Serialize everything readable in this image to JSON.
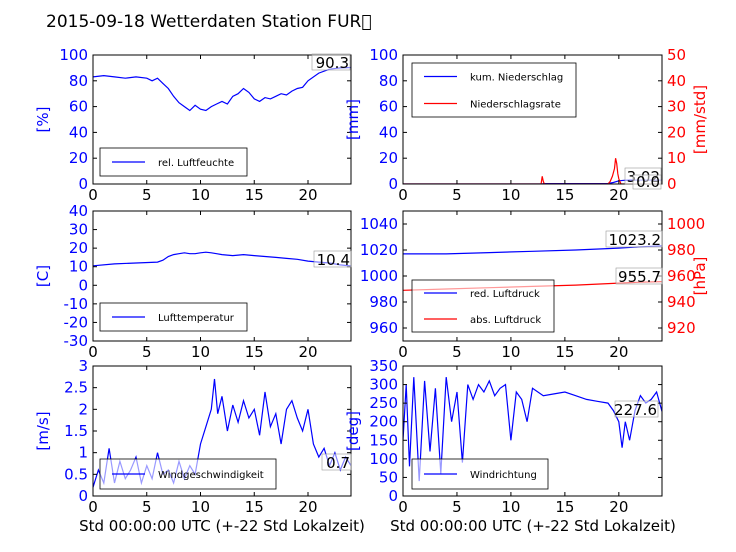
{
  "figure": {
    "title": "2015-09-18 Wetterdaten Station FUR\u0000",
    "xlabel": "Std 00:00:00 UTC (+-22 Std Lokalzeit)"
  },
  "colors": {
    "primary": "#0000ff",
    "secondary": "#ff0000",
    "light": "#8080ff",
    "axis": "#000000"
  },
  "chart_data": [
    {
      "type": "line",
      "ylabel": "[%]",
      "xlim": [
        0,
        24
      ],
      "ylim": [
        0,
        100
      ],
      "xticks": [
        0,
        5,
        10,
        15,
        20
      ],
      "yticks": [
        0,
        20,
        40,
        60,
        80,
        100
      ],
      "legend": {
        "placement": "lower-left",
        "entries": [
          "rel. Luftfeuchte"
        ]
      },
      "annotations": [
        "90.3"
      ],
      "series": [
        {
          "name": "rel. Luftfeuchte",
          "x": [
            0,
            1,
            2,
            3,
            4,
            5,
            5.5,
            6,
            6.5,
            7,
            7.5,
            8,
            8.5,
            9,
            9.5,
            10,
            10.5,
            11,
            11.5,
            12,
            12.5,
            13,
            13.5,
            14,
            14.5,
            15,
            15.5,
            16,
            16.5,
            17,
            17.5,
            18,
            18.5,
            19,
            19.5,
            20,
            21,
            22,
            23,
            24
          ],
          "y": [
            83,
            84,
            83,
            82,
            83,
            82,
            80,
            82,
            78,
            74,
            68,
            63,
            60,
            57,
            61,
            58,
            57,
            60,
            62,
            64,
            62,
            68,
            70,
            74,
            71,
            66,
            64,
            67,
            66,
            68,
            70,
            69,
            72,
            74,
            75,
            80,
            86,
            89,
            90,
            90.3
          ]
        }
      ]
    },
    {
      "type": "line",
      "ylabel": "[mm]",
      "ylabel2": "[mm/std]",
      "xlim": [
        0,
        24
      ],
      "ylim": [
        0,
        100
      ],
      "ylim2": [
        0,
        50
      ],
      "xticks": [
        0,
        5,
        10,
        15,
        20
      ],
      "yticks": [
        0,
        20,
        40,
        60,
        80,
        100
      ],
      "yticks2": [
        0,
        10,
        20,
        30,
        40,
        50
      ],
      "legend": {
        "placement": "upper-left",
        "entries": [
          "kum. Niederschlag",
          "Niederschlagsrate"
        ]
      },
      "annotations": [
        "3.02",
        "0.0"
      ],
      "series": [
        {
          "name": "kum. Niederschlag",
          "axis": "left",
          "x": [
            0,
            12.9,
            13,
            19,
            19.5,
            20,
            20.5,
            21,
            24
          ],
          "y": [
            0,
            0,
            0.3,
            0.4,
            1.2,
            2.5,
            2.9,
            3.02,
            3.02
          ]
        },
        {
          "name": "Niederschlagsrate",
          "axis": "right",
          "x": [
            0,
            12.8,
            12.9,
            13.0,
            13.1,
            19.0,
            19.2,
            19.4,
            19.6,
            19.7,
            19.8,
            19.9,
            20.0,
            20.1,
            20.2,
            20.4,
            24
          ],
          "y": [
            0,
            0,
            3,
            1,
            0,
            0,
            1,
            3,
            6,
            10,
            8,
            4,
            2,
            1,
            0,
            0,
            0
          ]
        }
      ]
    },
    {
      "type": "line",
      "ylabel": "[C]",
      "xlim": [
        0,
        24
      ],
      "ylim": [
        -30,
        40
      ],
      "xticks": [
        0,
        5,
        10,
        15,
        20
      ],
      "yticks": [
        -30,
        -20,
        -10,
        0,
        10,
        20,
        30,
        40
      ],
      "legend": {
        "placement": "lower-left",
        "entries": [
          "Lufttemperatur"
        ]
      },
      "annotations": [
        "10.4"
      ],
      "series": [
        {
          "name": "Lufttemperatur",
          "x": [
            0,
            2,
            4,
            6,
            6.5,
            7,
            7.5,
            8,
            8.5,
            9,
            9.5,
            10,
            10.5,
            11,
            11.5,
            12,
            13,
            14,
            15,
            16,
            17,
            18,
            19,
            20,
            21,
            22,
            23,
            24
          ],
          "y": [
            10.5,
            11.5,
            12,
            12.5,
            13.5,
            15.5,
            16.5,
            17,
            17.5,
            17,
            17,
            17.5,
            17.8,
            17.5,
            17,
            16.5,
            16,
            16.5,
            16,
            15.5,
            15,
            14.5,
            14,
            13,
            12.5,
            12,
            11,
            10.4
          ]
        }
      ]
    },
    {
      "type": "line",
      "ylabel2": "[hPa]",
      "xlim": [
        0,
        24
      ],
      "ylim": [
        950,
        1050
      ],
      "ylim2": [
        910,
        1010
      ],
      "xticks": [
        0,
        5,
        10,
        15,
        20
      ],
      "yticks": [
        960,
        980,
        1000,
        1020,
        1040
      ],
      "yticks2": [
        920,
        940,
        960,
        980,
        1000
      ],
      "legend": {
        "placement": "lower-left",
        "entries": [
          "red. Luftdruck",
          "abs. Luftdruck"
        ]
      },
      "annotations": [
        "1023.2",
        "955.7"
      ],
      "series": [
        {
          "name": "red. Luftdruck",
          "axis": "left",
          "x": [
            0,
            4,
            8,
            12,
            16,
            20,
            22,
            24
          ],
          "y": [
            1017,
            1017,
            1018,
            1019,
            1020,
            1021.5,
            1022.5,
            1023.2
          ]
        },
        {
          "name": "abs. Luftdruck",
          "axis": "right",
          "x": [
            0,
            4,
            8,
            12,
            16,
            20,
            22,
            24
          ],
          "y": [
            949,
            950,
            951,
            952,
            953,
            954.5,
            955.2,
            955.7
          ]
        }
      ]
    },
    {
      "type": "line",
      "ylabel": "[m/s]",
      "xlim": [
        0,
        24
      ],
      "ylim": [
        0,
        3
      ],
      "xticks": [
        0,
        5,
        10,
        15,
        20
      ],
      "yticks": [
        0.0,
        0.5,
        1.0,
        1.5,
        2.0,
        2.5,
        3.0
      ],
      "legend": {
        "placement": "lower-left",
        "entries": [
          "Windgeschwindigkeit"
        ]
      },
      "annotations": [
        "0.7"
      ],
      "series": [
        {
          "name": "Windgeschwindigkeit",
          "x": [
            0,
            0.5,
            1,
            1.5,
            2,
            2.5,
            3,
            3.5,
            4,
            4.5,
            5,
            5.5,
            6,
            6.5,
            7,
            7.5,
            8,
            8.5,
            9,
            9.5,
            10,
            10.5,
            11,
            11.3,
            11.6,
            12,
            12.5,
            13,
            13.5,
            14,
            14.5,
            15,
            15.5,
            16,
            16.5,
            17,
            17.5,
            18,
            18.5,
            19,
            19.5,
            20,
            20.5,
            21,
            21.5,
            22,
            22.5,
            23,
            23.5,
            24
          ],
          "y": [
            0.2,
            0.6,
            0.3,
            1.1,
            0.3,
            0.8,
            0.4,
            0.6,
            0.9,
            0.3,
            0.7,
            0.4,
            1.0,
            0.5,
            0.6,
            0.3,
            0.8,
            0.4,
            0.7,
            0.5,
            1.2,
            1.6,
            2.0,
            2.7,
            1.9,
            2.3,
            1.5,
            2.1,
            1.7,
            2.2,
            1.8,
            2.0,
            1.4,
            2.4,
            1.6,
            1.9,
            1.2,
            2.0,
            2.2,
            1.8,
            1.5,
            2.0,
            1.2,
            0.9,
            1.1,
            0.7,
            1.0,
            0.6,
            0.9,
            0.7
          ]
        }
      ]
    },
    {
      "type": "line",
      "ylabel": "[deg]",
      "xlim": [
        0,
        24
      ],
      "ylim": [
        0,
        350
      ],
      "xticks": [
        0,
        5,
        10,
        15,
        20
      ],
      "yticks": [
        0,
        50,
        100,
        150,
        200,
        250,
        300,
        350
      ],
      "legend": {
        "placement": "lower-left",
        "entries": [
          "Windrichtung"
        ]
      },
      "annotations": [
        "227.6"
      ],
      "series": [
        {
          "name": "Windrichtung",
          "x": [
            0,
            0.3,
            0.6,
            1,
            1.5,
            2,
            2.5,
            3,
            3.5,
            4,
            4.5,
            5,
            5.5,
            6,
            6.5,
            7,
            7.5,
            8,
            8.5,
            9,
            9.5,
            10,
            10.5,
            11,
            11.5,
            12,
            13,
            14,
            15,
            16,
            17,
            18,
            19,
            19.5,
            20,
            20.3,
            20.6,
            21,
            21.5,
            22,
            22.5,
            23,
            23.5,
            24
          ],
          "y": [
            150,
            300,
            80,
            320,
            40,
            310,
            120,
            290,
            60,
            320,
            200,
            280,
            90,
            300,
            260,
            300,
            280,
            310,
            270,
            290,
            300,
            150,
            280,
            260,
            200,
            290,
            270,
            275,
            280,
            270,
            260,
            255,
            250,
            230,
            200,
            130,
            200,
            150,
            230,
            270,
            250,
            260,
            280,
            227.6
          ]
        }
      ]
    }
  ]
}
